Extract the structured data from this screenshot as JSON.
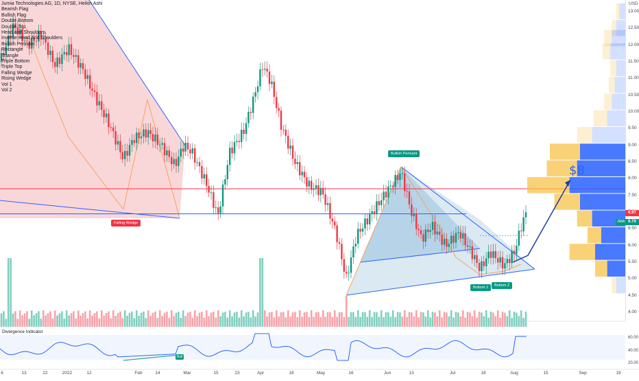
{
  "legend": {
    "title": "Jumia Technologies AG, 1D, NYSE, Heikin Ashi",
    "items": [
      "Bearish Flag",
      "Bullish Flag",
      "Double Bottom",
      "Double Top",
      "Head and Shoulders",
      "Inverse Head And Shoulders",
      "Bullish Pennant",
      "Rectangle",
      "Triangle",
      "Triple Bottom",
      "Triple Top",
      "Falling Wedge",
      "Rising Wedge",
      "Vol 1",
      "Vol 2"
    ]
  },
  "price_axis": {
    "currency": "USD",
    "ticks": [
      "13.00",
      "12.50",
      "12.00",
      "11.50",
      "11.00",
      "10.50",
      "10.00",
      "9.50",
      "9.00",
      "8.50",
      "8.00",
      "7.50",
      "7.00",
      "6.50",
      "6.00",
      "5.50",
      "5.00",
      "4.50",
      "4.00"
    ]
  },
  "date_axis": {
    "ticks": [
      "6",
      "13",
      "22",
      "2022",
      "12",
      "Feb",
      "14",
      "Mar",
      "15",
      "23",
      "Apr",
      "18",
      "May",
      "16",
      "Jun",
      "13",
      "Jul",
      "18",
      "Aug",
      "15",
      "Sep",
      "19"
    ]
  },
  "annotations": {
    "falling_wedge": "Falling Wedge",
    "bullish_pennant": "Bullish Pennant",
    "bottom1": "Bottom 1",
    "bottom2": "Bottom 2",
    "bull": "Bull",
    "target": "$8"
  },
  "price_tags": {
    "upper": "6.97",
    "last": "6.70",
    "ticker": "JMIA"
  },
  "oscillator": {
    "title": "Divergence Indicator",
    "ticks": [
      "60.00",
      "40.00",
      "20.00"
    ]
  },
  "colors": {
    "up": "#089981",
    "down": "#f23645",
    "accent": "#2962ff",
    "wedge_fill": "#f7c6c9",
    "pennant_fill": "#b7d3e6",
    "vp_up": "#2962ff",
    "vp_down": "#f7c14a"
  },
  "chart_data": {
    "type": "candlestick",
    "title": "Jumia Technologies AG, 1D, NYSE, Heikin Ashi",
    "ylabel": "USD",
    "ylim": [
      4.0,
      13.2
    ],
    "horizontal_lines": [
      7.7,
      6.9
    ]
  }
}
